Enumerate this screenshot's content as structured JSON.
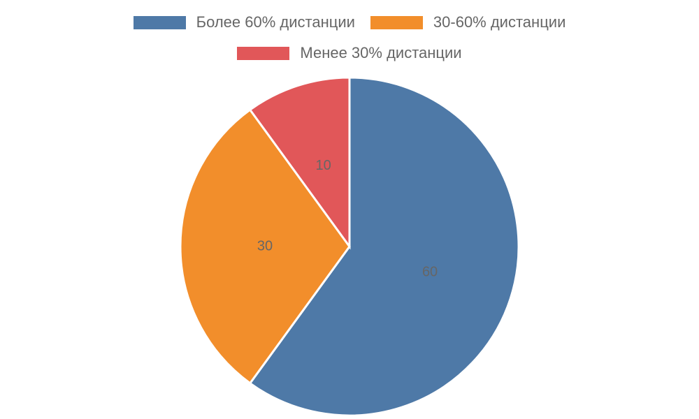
{
  "chart_data": {
    "type": "pie",
    "categories": [
      "Более 60% дистанции",
      "30-60% дистанции",
      "Менее 30% дистанции"
    ],
    "values": [
      60,
      30,
      10
    ],
    "colors": [
      "#4e79a7",
      "#f28e2b",
      "#e15759"
    ],
    "legend": "top"
  }
}
